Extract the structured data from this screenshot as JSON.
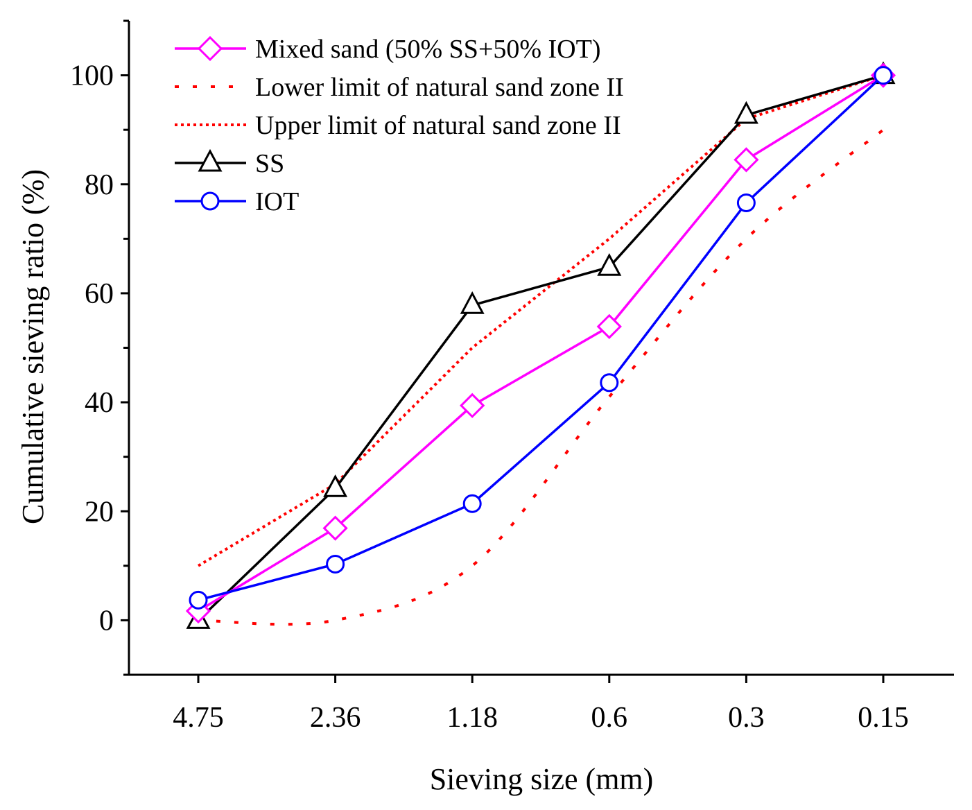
{
  "chart_data": {
    "type": "line",
    "xlabel": "Sieving size (mm)",
    "ylabel": "Cumulative sieving ratio (%)",
    "categories": [
      "4.75",
      "2.36",
      "1.18",
      "0.6",
      "0.3",
      "0.15"
    ],
    "ylim": [
      -10,
      110
    ],
    "yticks": [
      0,
      20,
      40,
      60,
      80,
      100
    ],
    "grid": false,
    "legend_position": "top-left",
    "series": [
      {
        "name": "Mixed sand (50% SS+50% IOT)",
        "color": "#ff00ff",
        "marker": "diamond",
        "style": "solid",
        "values": [
          1.7,
          16.9,
          39.4,
          53.9,
          84.5,
          100
        ]
      },
      {
        "name": "Lower limit of natural sand zone II",
        "color": "#ff0000",
        "marker": "none",
        "style": "dash",
        "values": [
          0,
          0,
          10,
          41,
          70,
          90
        ]
      },
      {
        "name": "Upper limit of natural sand zone II",
        "color": "#ff0000",
        "marker": "none",
        "style": "dot",
        "values": [
          10,
          25,
          50,
          70,
          92,
          100
        ]
      },
      {
        "name": "SS",
        "color": "#000000",
        "marker": "triangle",
        "style": "solid",
        "values": [
          0,
          24.2,
          57.8,
          64.8,
          92.7,
          100
        ]
      },
      {
        "name": "IOT",
        "color": "#0000ff",
        "marker": "circle",
        "style": "solid",
        "values": [
          3.7,
          10.3,
          21.4,
          43.6,
          76.6,
          100
        ]
      }
    ]
  }
}
